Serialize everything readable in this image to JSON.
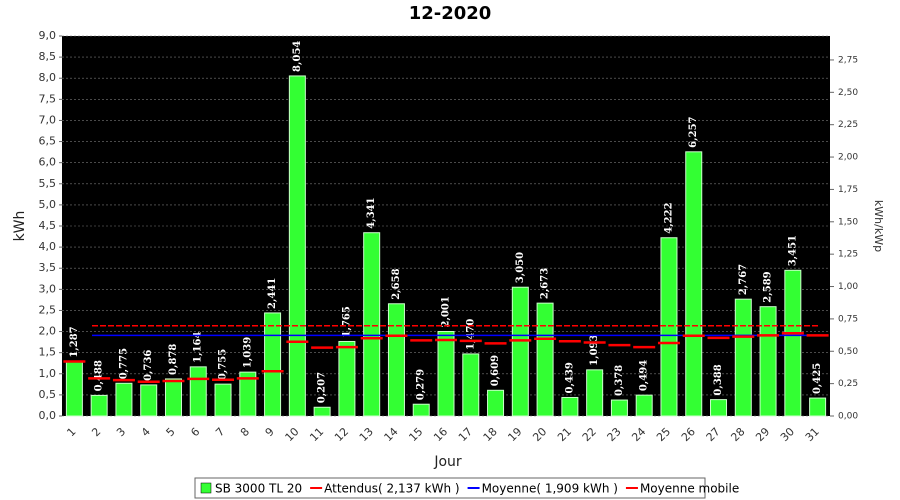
{
  "chart_data": {
    "type": "bar",
    "title": "12-2020",
    "x_label": "Jour",
    "y_label": "kWh",
    "y2_label": "kWh/kWp",
    "categories": [
      "1",
      "2",
      "3",
      "4",
      "5",
      "6",
      "7",
      "8",
      "9",
      "10",
      "11",
      "12",
      "13",
      "14",
      "15",
      "16",
      "17",
      "18",
      "19",
      "20",
      "21",
      "22",
      "23",
      "24",
      "25",
      "26",
      "27",
      "28",
      "29",
      "30",
      "31"
    ],
    "series": [
      {
        "name": "SB 3000 TL 20",
        "color": "#33ff33",
        "values": [
          1.287,
          0.488,
          0.775,
          0.736,
          0.878,
          1.164,
          0.755,
          1.039,
          2.441,
          8.054,
          0.207,
          1.765,
          4.341,
          2.658,
          0.279,
          2.001,
          1.47,
          0.609,
          3.05,
          2.673,
          0.439,
          1.093,
          0.378,
          0.494,
          4.222,
          6.257,
          0.388,
          2.767,
          2.589,
          3.451,
          0.425
        ],
        "value_labels": [
          "1,287",
          "0,488",
          "0,775",
          "0,736",
          "0,878",
          "1,164",
          "0,755",
          "1,039",
          "2,441",
          "8,054",
          "0,207",
          "1,765",
          "4,341",
          "2,658",
          "0,279",
          "2,001",
          "1,470",
          "0,609",
          "3,050",
          "2,673",
          "0,439",
          "1,093",
          "0,378",
          "0,494",
          "4,222",
          "6,257",
          "0,388",
          "2,767",
          "2,589",
          "3,451",
          "0,425"
        ]
      },
      {
        "name": "Attendus( 2,137 kWh )",
        "color": "#ff0000",
        "value": 2.137
      },
      {
        "name": "Moyenne( 1,909 kWh )",
        "color": "#0000ff",
        "value": 1.909
      },
      {
        "name": "Moyenne mobile",
        "color": "#ff0000",
        "values": [
          1.29,
          0.89,
          0.85,
          0.81,
          0.83,
          0.88,
          0.86,
          0.89,
          1.06,
          1.76,
          1.62,
          1.63,
          1.84,
          1.9,
          1.79,
          1.8,
          1.78,
          1.72,
          1.79,
          1.83,
          1.77,
          1.74,
          1.68,
          1.63,
          1.73,
          1.9,
          1.85,
          1.88,
          1.91,
          1.96,
          1.91
        ]
      }
    ],
    "ylim": [
      0,
      9
    ],
    "yticks": [
      {
        "value": 0,
        "label": "0,0"
      },
      {
        "value": 0.5,
        "label": "0,5"
      },
      {
        "value": 1,
        "label": "1,0"
      },
      {
        "value": 1.5,
        "label": "1,5"
      },
      {
        "value": 2,
        "label": "2,0"
      },
      {
        "value": 2.5,
        "label": "2,5"
      },
      {
        "value": 3,
        "label": "3,0"
      },
      {
        "value": 3.5,
        "label": "3,5"
      },
      {
        "value": 4,
        "label": "4,0"
      },
      {
        "value": 4.5,
        "label": "4,5"
      },
      {
        "value": 5,
        "label": "5,0"
      },
      {
        "value": 5.5,
        "label": "5,5"
      },
      {
        "value": 6,
        "label": "6,0"
      },
      {
        "value": 6.5,
        "label": "6,5"
      },
      {
        "value": 7,
        "label": "7,0"
      },
      {
        "value": 7.5,
        "label": "7,5"
      },
      {
        "value": 8,
        "label": "8,0"
      },
      {
        "value": 8.5,
        "label": "8,5"
      },
      {
        "value": 9,
        "label": "9,0"
      }
    ],
    "y2lim": [
      0,
      2.935
    ],
    "y2ticks": [
      {
        "value": 0,
        "label": "0,00"
      },
      {
        "value": 0.25,
        "label": "0,25"
      },
      {
        "value": 0.5,
        "label": "0,50"
      },
      {
        "value": 0.75,
        "label": "0,75"
      },
      {
        "value": 1,
        "label": "1,00"
      },
      {
        "value": 1.25,
        "label": "1,25"
      },
      {
        "value": 1.5,
        "label": "1,50"
      },
      {
        "value": 1.75,
        "label": "1,75"
      },
      {
        "value": 2,
        "label": "2,00"
      },
      {
        "value": 2.25,
        "label": "2,25"
      },
      {
        "value": 2.5,
        "label": "2,50"
      },
      {
        "value": 2.75,
        "label": "2,75"
      }
    ],
    "grid": true
  }
}
